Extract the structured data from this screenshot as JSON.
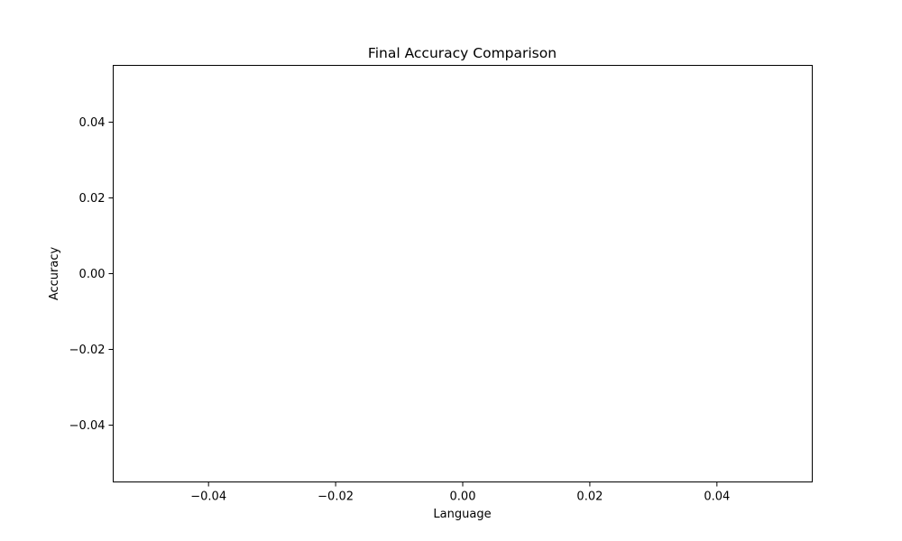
{
  "chart_data": {
    "type": "bar",
    "title": "Final Accuracy Comparison",
    "xlabel": "Language",
    "ylabel": "Accuracy",
    "categories": [],
    "values": [],
    "xlim": [
      -0.055,
      0.055
    ],
    "ylim": [
      -0.055,
      0.055
    ],
    "xticks": [
      -0.04,
      -0.02,
      0.0,
      0.02,
      0.04
    ],
    "yticks": [
      -0.04,
      -0.02,
      0.0,
      0.02,
      0.04
    ],
    "xtick_labels": [
      "−0.04",
      "−0.02",
      "0.00",
      "0.02",
      "0.04"
    ],
    "ytick_labels": [
      "−0.04",
      "−0.02",
      "0.00",
      "0.02",
      "0.04"
    ],
    "grid": false,
    "legend": "none"
  }
}
